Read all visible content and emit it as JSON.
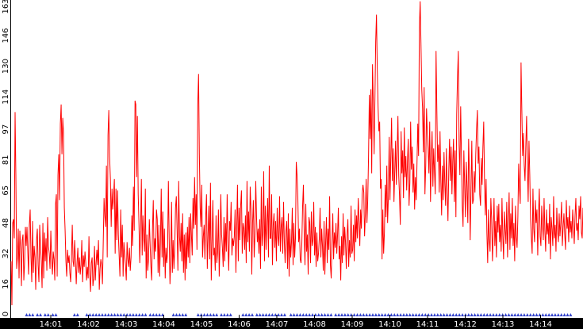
{
  "chart_data": {
    "type": "line",
    "title": "",
    "xlabel": "",
    "ylabel": "",
    "ylim": [
      0,
      163
    ],
    "yticks": [
      0,
      16,
      32,
      48,
      65,
      81,
      97,
      114,
      130,
      146,
      163
    ],
    "xticks": [
      "14:01",
      "14:02",
      "14:03",
      "14:04",
      "14:05",
      "14:06",
      "14:07",
      "14:08",
      "14:09",
      "14:10",
      "14:11",
      "14:12",
      "14:13",
      "14:14"
    ],
    "grid": false,
    "colors": {
      "series": "#ff0000",
      "markers": "#3344cc",
      "axis_band": "#000000",
      "tick_text": "#ffffff"
    },
    "series": [
      {
        "values": [
          28,
          5,
          48,
          50,
          40,
          106,
          72,
          24,
          30,
          45,
          19,
          44,
          35,
          15,
          39,
          42,
          18,
          27,
          46,
          36,
          46,
          33,
          21,
          47,
          55,
          31,
          17,
          49,
          22,
          36,
          30,
          13,
          39,
          45,
          26,
          17,
          47,
          36,
          28,
          14,
          48,
          19,
          43,
          28,
          40,
          23,
          51,
          36,
          32,
          24,
          44,
          30,
          21,
          33,
          29,
          18,
          58,
          63,
          20,
          73,
          84,
          60,
          100,
          110,
          84,
          103,
          95,
          56,
          44,
          28,
          20,
          34,
          27,
          31,
          22,
          17,
          30,
          47,
          28,
          25,
          39,
          29,
          16,
          27,
          35,
          22,
          30,
          21,
          26,
          39,
          17,
          31,
          25,
          33,
          27,
          18,
          25,
          19,
          41,
          21,
          12,
          27,
          30,
          15,
          19,
          36,
          18,
          27,
          34,
          26,
          39,
          13,
          24,
          29,
          26,
          16,
          38,
          61,
          52,
          46,
          78,
          30,
          94,
          107,
          83,
          71,
          46,
          66,
          55,
          62,
          71,
          32,
          66,
          39,
          65,
          42,
          31,
          20,
          55,
          30,
          47,
          20,
          38,
          32,
          26,
          18,
          38,
          29,
          25,
          35,
          23,
          30,
          52,
          36,
          67,
          44,
          112,
          110,
          72,
          104,
          63,
          47,
          27,
          44,
          71,
          31,
          52,
          40,
          33,
          66,
          19,
          42,
          23,
          29,
          50,
          37,
          25,
          18,
          45,
          60,
          29,
          40,
          33,
          55,
          50,
          22,
          47,
          20,
          38,
          66,
          30,
          54,
          25,
          45,
          19,
          35,
          27,
          33,
          70,
          40,
          16,
          28,
          59,
          22,
          39,
          24,
          35,
          56,
          62,
          44,
          23,
          70,
          41,
          33,
          48,
          28,
          53,
          22,
          42,
          18,
          43,
          24,
          46,
          30,
          51,
          27,
          53,
          42,
          31,
          61,
          45,
          72,
          47,
          63,
          34,
          110,
          126,
          84,
          56,
          46,
          68,
          30,
          41,
          47,
          29,
          51,
          63,
          24,
          42,
          57,
          29,
          69,
          18,
          38,
          60,
          31,
          35,
          23,
          52,
          27,
          33,
          55,
          20,
          38,
          63,
          42,
          35,
          25,
          51,
          28,
          48,
          33,
          63,
          37,
          23,
          49,
          44,
          59,
          31,
          40,
          36,
          41,
          55,
          22,
          45,
          68,
          28,
          56,
          39,
          57,
          65,
          32,
          48,
          45,
          34,
          52,
          27,
          70,
          38,
          54,
          33,
          67,
          55,
          21,
          48,
          60,
          30,
          42,
          70,
          51,
          38,
          45,
          32,
          50,
          24,
          67,
          36,
          43,
          75,
          28,
          57,
          34,
          48,
          61,
          30,
          78,
          40,
          40,
          63,
          26,
          47,
          53,
          35,
          49,
          28,
          56,
          41,
          36,
          62,
          33,
          46,
          51,
          32,
          59,
          38,
          27,
          44,
          49,
          24,
          53,
          20,
          45,
          30,
          38,
          56,
          26,
          48,
          30,
          40,
          80,
          73,
          61,
          38,
          45,
          29,
          27,
          37,
          57,
          68,
          42,
          26,
          58,
          33,
          42,
          21,
          51,
          48,
          27,
          54,
          36,
          39,
          59,
          31,
          46,
          25,
          43,
          28,
          32,
          40,
          56,
          30,
          45,
          36,
          23,
          49,
          21,
          38,
          51,
          27,
          45,
          34,
          62,
          26,
          19,
          38,
          53,
          29,
          43,
          35,
          48,
          32,
          42,
          56,
          29,
          36,
          18,
          41,
          27,
          53,
          31,
          46,
          38,
          24,
          42,
          50,
          25,
          39,
          30,
          57,
          32,
          34,
          47,
          28,
          55,
          38,
          52,
          40,
          61,
          49,
          36,
          55,
          45,
          63,
          68,
          64,
          41,
          53,
          71,
          48,
          60,
          83,
          115,
          92,
          118,
          74,
          131,
          111,
          84,
          112,
          143,
          157,
          128,
          109,
          96,
          101,
          66,
          71,
          29,
          55,
          32,
          43,
          68,
          51,
          78,
          48,
          62,
          93,
          60,
          82,
          103,
          70,
          87,
          59,
          75,
          91,
          68,
          85,
          104,
          73,
          62,
          47,
          96,
          74,
          86,
          61,
          98,
          72,
          83,
          65,
          80,
          92,
          57,
          69,
          101,
          76,
          88,
          64,
          79,
          55,
          72,
          60,
          79,
          100,
          83,
          150,
          164,
          142,
          118,
          108,
          85,
          119,
          63,
          78,
          108,
          95,
          87,
          74,
          101,
          59,
          82,
          96,
          67,
          87,
          75,
          63,
          138,
          107,
          80,
          89,
          64,
          96,
          71,
          52,
          78,
          60,
          85,
          69,
          57,
          87,
          64,
          49,
          75,
          92,
          70,
          88,
          63,
          80,
          92,
          59,
          86,
          51,
          105,
          124,
          138,
          89,
          73,
          109,
          82,
          57,
          46,
          86,
          68,
          51,
          80,
          67,
          48,
          92,
          73,
          39,
          65,
          91,
          58,
          60,
          75,
          64,
          84,
          97,
          107,
          79,
          88,
          63,
          57,
          82,
          68,
          88,
          101,
          70,
          52,
          71,
          43,
          27,
          55,
          39,
          33,
          61,
          50,
          28,
          44,
          61,
          36,
          49,
          30,
          57,
          43,
          58,
          38,
          47,
          33,
          61,
          42,
          29,
          54,
          45,
          37,
          59,
          30,
          49,
          64,
          34,
          53,
          40,
          61,
          36,
          48,
          28,
          57,
          41,
          35,
          51,
          79,
          66,
          58,
          132,
          107,
          83,
          95,
          78,
          70,
          88,
          104,
          77,
          59,
          91,
          73,
          50,
          40,
          32,
          66,
          45,
          38,
          60,
          48,
          55,
          31,
          52,
          66,
          41,
          36,
          57,
          47,
          39,
          61,
          44,
          33,
          55,
          42,
          48,
          37,
          58,
          29,
          51,
          45,
          36,
          62,
          40,
          47,
          33,
          56,
          44,
          38,
          53,
          41,
          48,
          59,
          36,
          46,
          53,
          42,
          34,
          60,
          45,
          51,
          38,
          57,
          43,
          49,
          40,
          55,
          47,
          37,
          52,
          61,
          44,
          48,
          39,
          57,
          50,
          62,
          43,
          40,
          56
        ]
      }
    ],
    "markers": {
      "label": "▲",
      "start_index": 0,
      "step": 2,
      "indices": [
        10,
        12,
        14,
        17,
        19,
        22,
        24,
        27,
        29,
        41,
        43,
        49,
        51,
        53,
        55,
        57,
        59,
        61,
        63,
        65,
        67,
        69,
        71,
        73,
        75,
        77,
        79,
        81,
        83,
        85,
        87,
        90,
        92,
        94,
        96,
        98,
        105,
        107,
        109,
        111,
        113,
        121,
        123,
        125,
        127,
        129,
        131,
        133,
        136,
        138,
        140,
        142,
        150,
        152,
        154,
        156,
        159,
        161,
        163,
        165,
        167,
        169,
        171,
        173,
        175,
        177,
        181,
        183,
        185,
        187,
        189,
        191,
        193,
        195,
        197,
        199,
        201,
        203,
        205,
        207,
        210,
        212,
        214,
        216,
        218,
        220,
        222,
        224,
        226,
        228,
        230,
        232,
        234,
        236,
        238,
        240,
        242,
        244,
        246,
        248,
        250,
        252,
        254,
        256,
        258,
        260,
        262,
        264,
        266,
        268,
        270,
        272,
        274,
        276,
        278,
        280,
        282,
        284,
        286,
        288,
        290,
        292,
        294,
        296,
        298,
        300,
        302,
        304,
        306,
        308,
        310,
        312,
        314,
        316,
        318,
        320,
        322,
        324,
        326,
        328,
        330,
        332,
        334,
        336,
        338,
        340,
        342,
        344,
        346,
        348,
        350,
        352,
        354,
        356,
        358,
        360,
        362
      ]
    }
  }
}
